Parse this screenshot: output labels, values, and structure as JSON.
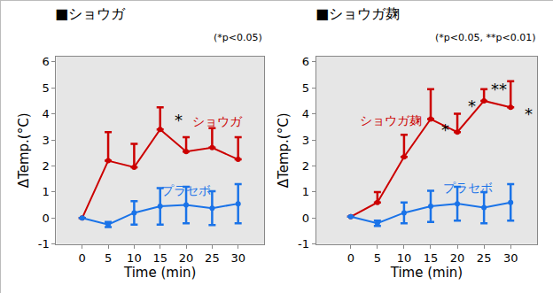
{
  "chart_data": [
    {
      "type": "line",
      "title": "■ショウガ",
      "subtitle": "(*p<0.05)",
      "x_label": "Time (min)",
      "y_label": "ΔTemp.(°C)",
      "x": [
        0,
        5,
        10,
        15,
        20,
        25,
        30
      ],
      "xlim": [
        -5,
        35
      ],
      "xticks": [
        0,
        5,
        10,
        15,
        20,
        25,
        30
      ],
      "ylim": [
        -1,
        6.2
      ],
      "yticks": [
        -1,
        0,
        1,
        2,
        3,
        4,
        5,
        6
      ],
      "grid": false,
      "series": [
        {
          "name": "ショウガ",
          "color": "#cc0000",
          "marker": "circle",
          "values": [
            0,
            2.2,
            1.95,
            3.4,
            2.55,
            2.7,
            2.25
          ],
          "error_plus": [
            0,
            1.1,
            0.9,
            0.85,
            0.55,
            0.75,
            0.85
          ]
        },
        {
          "name": "プラセボ",
          "color": "#1a73e8",
          "marker": "circle",
          "values": [
            0,
            -0.25,
            0.2,
            0.45,
            0.5,
            0.38,
            0.55
          ],
          "error_plus": [
            0,
            0.1,
            0.45,
            0.7,
            0.7,
            0.65,
            0.75
          ],
          "error_minus": [
            0,
            0.1,
            0.45,
            0.7,
            0.7,
            0.65,
            0.75
          ]
        }
      ],
      "annotations": [
        {
          "text": "*",
          "x": 18.5,
          "y": 3.75,
          "color": "#000000"
        },
        {
          "text": "ショウガ",
          "x": 26,
          "y": 3.7,
          "color": "#cc0000"
        },
        {
          "text": "プラセボ",
          "x": 20,
          "y": 1.05,
          "color": "#1a73e8"
        }
      ]
    },
    {
      "type": "line",
      "title": "■ショウガ麹",
      "subtitle": "(*p<0.05, **p<0.01)",
      "x_label": "Time (min)",
      "y_label": "ΔTemp.(°C)",
      "x": [
        0,
        5,
        10,
        15,
        20,
        25,
        30
      ],
      "xlim": [
        -6.5,
        35
      ],
      "xticks": [
        0,
        5,
        10,
        15,
        20,
        25,
        30
      ],
      "ylim": [
        -1,
        6.2
      ],
      "yticks": [
        -1,
        0,
        1,
        2,
        3,
        4,
        5,
        6
      ],
      "grid": false,
      "series": [
        {
          "name": "ショウガ麹",
          "color": "#cc0000",
          "marker": "circle",
          "values": [
            0.05,
            0.6,
            2.35,
            3.8,
            3.3,
            4.5,
            4.25
          ],
          "error_plus": [
            0,
            0.4,
            0.85,
            1.15,
            0.7,
            0.45,
            1.0
          ]
        },
        {
          "name": "プラセボ",
          "color": "#1a73e8",
          "marker": "circle",
          "values": [
            0.05,
            -0.2,
            0.2,
            0.45,
            0.55,
            0.4,
            0.6
          ],
          "error_plus": [
            0,
            0.1,
            0.4,
            0.6,
            0.65,
            0.6,
            0.7
          ],
          "error_minus": [
            0,
            0.1,
            0.4,
            0.6,
            0.65,
            0.6,
            0.7
          ]
        }
      ],
      "annotations": [
        {
          "text": "*",
          "x": 17.8,
          "y": 3.4,
          "color": "#000000"
        },
        {
          "text": "*",
          "x": 22.8,
          "y": 4.3,
          "color": "#000000"
        },
        {
          "text": "**",
          "x": 27.8,
          "y": 4.95,
          "color": "#000000"
        },
        {
          "text": "*",
          "x": 33.3,
          "y": 4.0,
          "color": "#000000"
        },
        {
          "text": "ショウガ麹",
          "x": 7.5,
          "y": 3.75,
          "color": "#cc0000"
        },
        {
          "text": "プラセボ",
          "x": 22,
          "y": 1.15,
          "color": "#1a73e8"
        }
      ]
    }
  ]
}
